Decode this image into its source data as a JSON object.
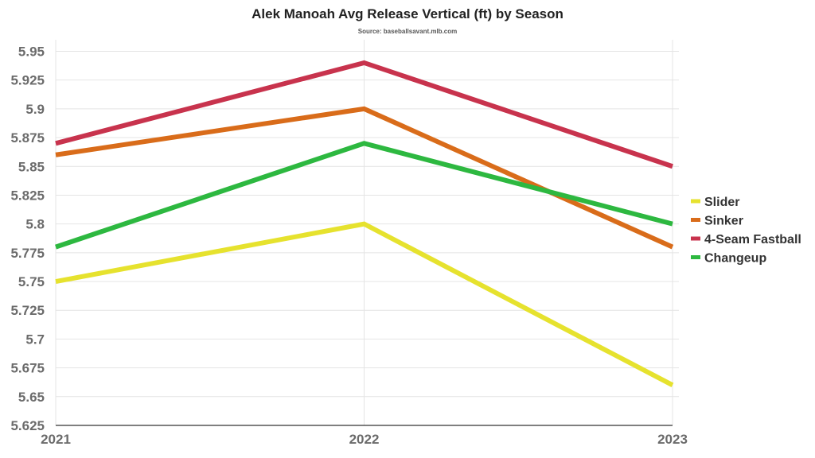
{
  "chart_data": {
    "type": "line",
    "title": "Alek Manoah Avg Release Vertical (ft) by Season",
    "subtitle": "Source: baseballsavant.mlb.com",
    "xlabel": "",
    "ylabel": "",
    "categories": [
      "2021",
      "2022",
      "2023"
    ],
    "y_ticks": [
      "5.625",
      "5.65",
      "5.675",
      "5.7",
      "5.725",
      "5.75",
      "5.775",
      "5.8",
      "5.825",
      "5.85",
      "5.875",
      "5.9",
      "5.925",
      "5.95"
    ],
    "ylim": [
      5.625,
      5.96
    ],
    "grid": true,
    "legend_position": "right",
    "series": [
      {
        "name": "Slider",
        "color": "#e6e22e",
        "values": [
          5.75,
          5.8,
          5.66
        ]
      },
      {
        "name": "Sinker",
        "color": "#d96c1a",
        "values": [
          5.86,
          5.9,
          5.78
        ]
      },
      {
        "name": "4-Seam Fastball",
        "color": "#c8334d",
        "values": [
          5.87,
          5.94,
          5.85
        ]
      },
      {
        "name": "Changeup",
        "color": "#2db840",
        "values": [
          5.78,
          5.87,
          5.8
        ]
      }
    ]
  }
}
